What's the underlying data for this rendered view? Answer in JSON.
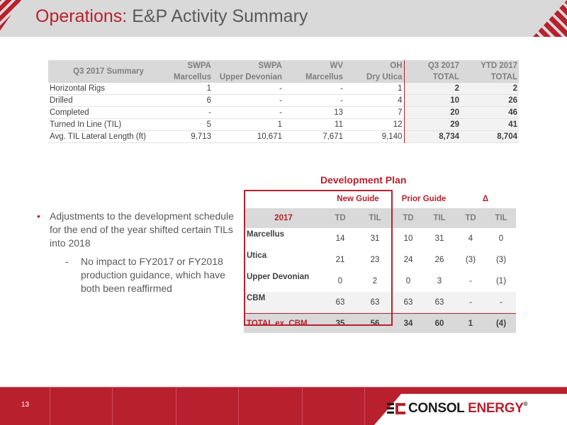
{
  "header": {
    "title_accent": "Operations:",
    "title_rest": " E&P Activity Summary"
  },
  "summary": {
    "title": "Q3 2017 Summary",
    "columns": [
      {
        "line1": "SWPA",
        "line2": "Marcellus"
      },
      {
        "line1": "SWPA",
        "line2": "Upper Devonian"
      },
      {
        "line1": "WV",
        "line2": "Marcellus"
      },
      {
        "line1": "OH",
        "line2": "Dry Utica"
      },
      {
        "line1": "Q3 2017",
        "line2": "TOTAL"
      },
      {
        "line1": "YTD 2017",
        "line2": "TOTAL"
      }
    ],
    "rows": [
      {
        "label": "Horizontal Rigs",
        "values": [
          "1",
          "-",
          "-",
          "1",
          "2",
          "2"
        ]
      },
      {
        "label": "Drilled",
        "values": [
          "6",
          "-",
          "-",
          "4",
          "10",
          "26"
        ]
      },
      {
        "label": "Completed",
        "values": [
          "-",
          "-",
          "13",
          "7",
          "20",
          "46"
        ]
      },
      {
        "label": "Turned In Line (TIL)",
        "values": [
          "5",
          "1",
          "11",
          "12",
          "29",
          "41"
        ]
      },
      {
        "label": "Avg. TIL Lateral Length (ft)",
        "values": [
          "9,713",
          "10,671",
          "7,671",
          "9,140",
          "8,734",
          "8,704"
        ]
      }
    ]
  },
  "dev_plan": {
    "title": "Development Plan",
    "groups": [
      "New Guide",
      "Prior Guide",
      "Δ"
    ],
    "year_label": "2017",
    "sub_headers": [
      "TD",
      "TIL",
      "TD",
      "TIL",
      "TD",
      "TIL"
    ],
    "rows": [
      {
        "label": "Marcellus",
        "values": [
          "14",
          "31",
          "10",
          "31",
          "4",
          "0"
        ]
      },
      {
        "label": "Utica",
        "values": [
          "21",
          "23",
          "24",
          "26",
          "(3)",
          "(3)"
        ]
      },
      {
        "label": "Upper Devonian",
        "values": [
          "0",
          "2",
          "0",
          "3",
          "-",
          "(1)"
        ]
      },
      {
        "label": "CBM",
        "values": [
          "63",
          "63",
          "63",
          "63",
          "-",
          "-"
        ]
      },
      {
        "label": "TOTAL ex. CBM",
        "values": [
          "35",
          "56",
          "34",
          "60",
          "1",
          "(4)"
        ]
      }
    ]
  },
  "bullets": {
    "main": "Adjustments to the development schedule for the end of the year shifted certain TILs into 2018",
    "sub": "No impact to FY2017 or FY2018 production guidance, which have both been reaffirmed"
  },
  "footer": {
    "page_number": "13",
    "logo_word1": "CONSOL",
    "logo_word2": "ENERGY",
    "logo_mark": "®"
  },
  "colors": {
    "accent": "#b8202e",
    "header_gray": "#d9d9d9"
  }
}
